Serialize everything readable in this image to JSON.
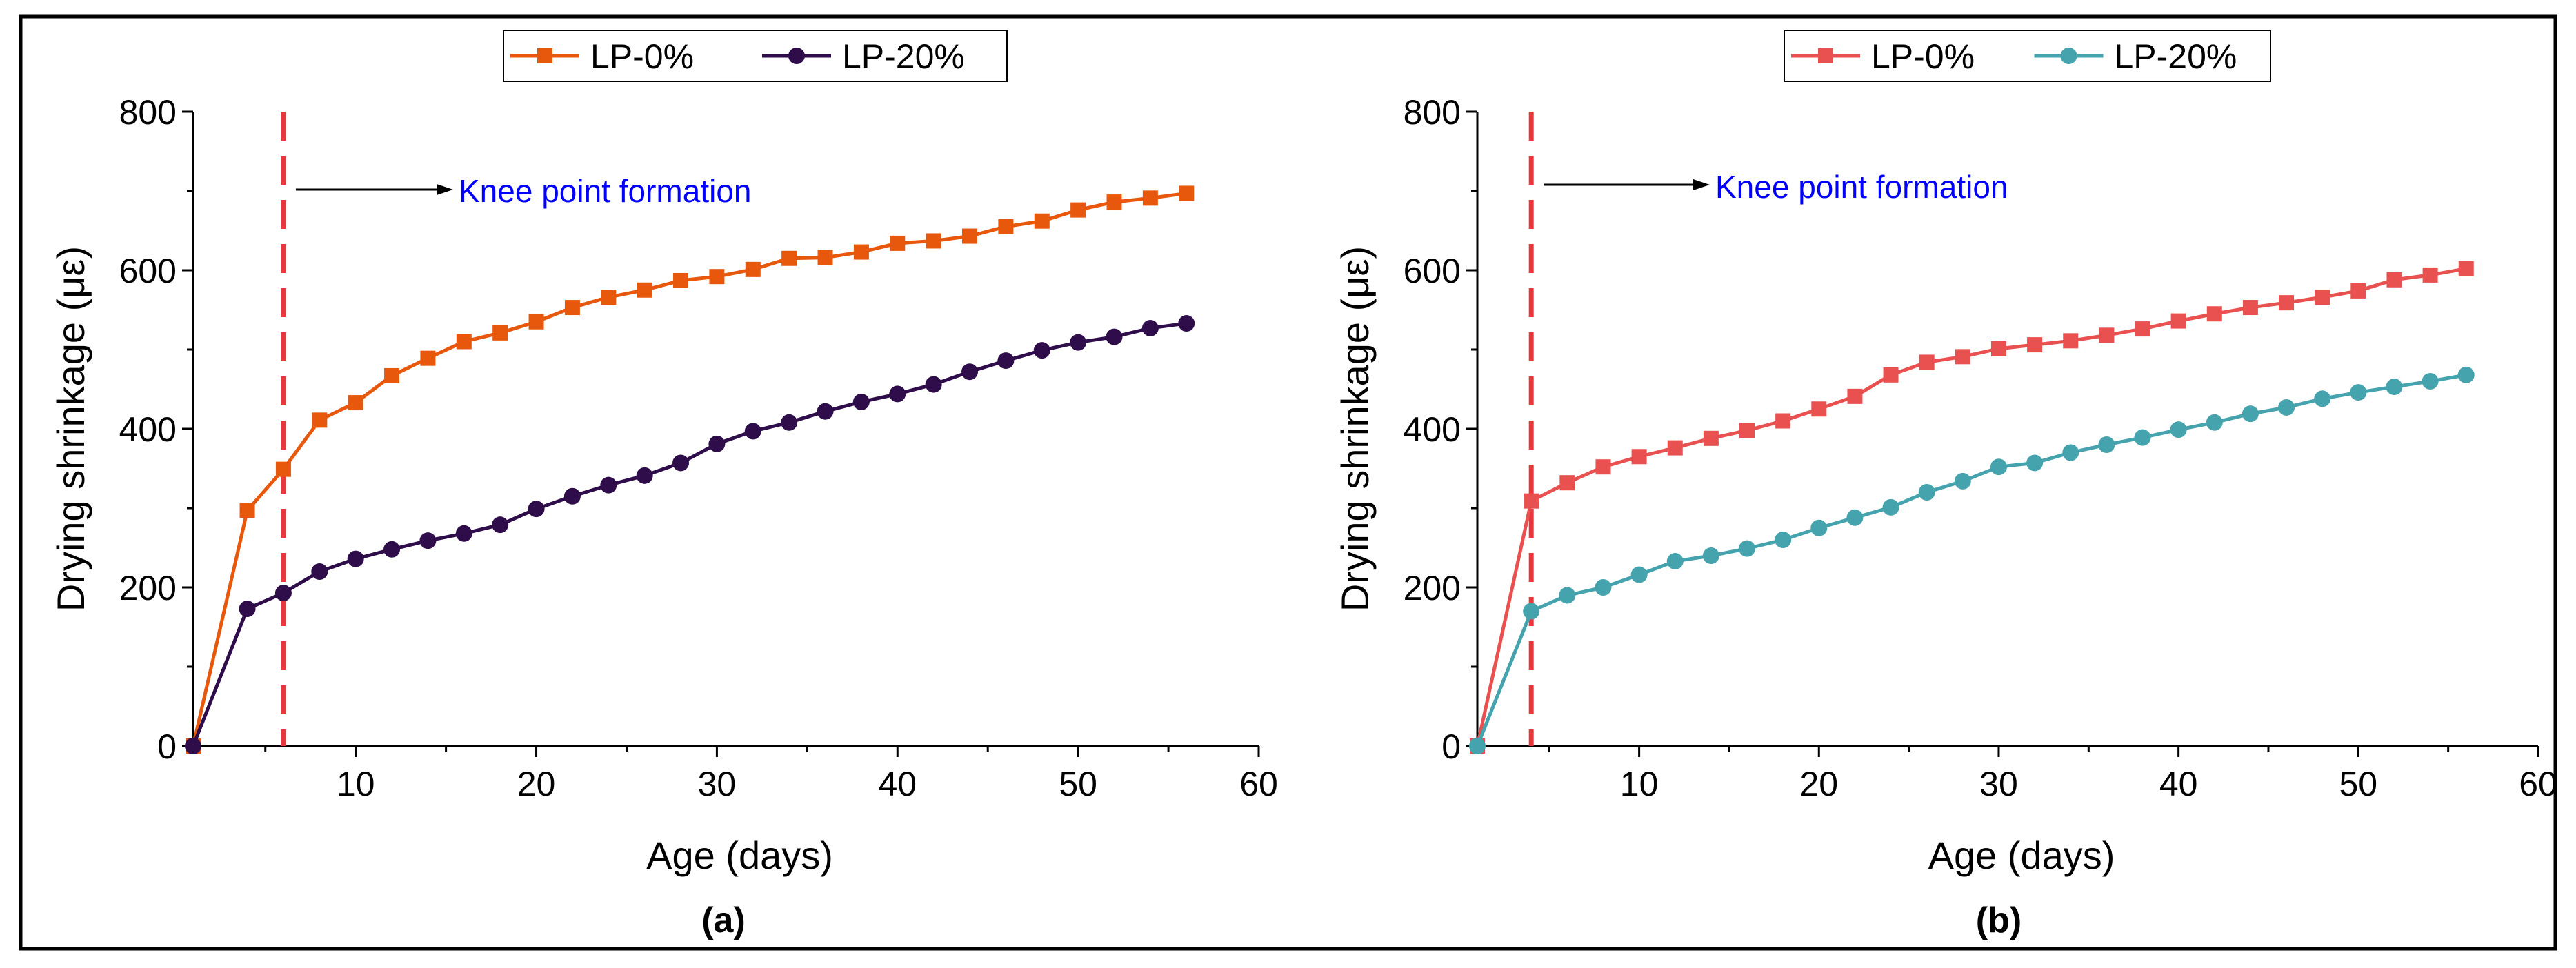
{
  "chart_data": [
    {
      "type": "line",
      "panel_label": "(a)",
      "xlabel": "Age (days)",
      "ylabel": "Drying shrinkage (με)",
      "xlim": [
        1,
        60
      ],
      "ylim": [
        0,
        800
      ],
      "xticks": [
        10,
        20,
        30,
        40,
        50,
        60
      ],
      "yticks": [
        0,
        200,
        400,
        600,
        800
      ],
      "grid": false,
      "legend_position": "top-center",
      "knee_x": 6,
      "knee_color": "#e8383d",
      "annotation": {
        "text": "Knee point formation",
        "color": "#0000ff"
      },
      "series": [
        {
          "name": "LP-0%",
          "color": "#e8580c",
          "marker": "square",
          "x": [
            1,
            4,
            6,
            8,
            10,
            12,
            14,
            16,
            18,
            20,
            22,
            24,
            26,
            28,
            30,
            32,
            34,
            36,
            38,
            40,
            42,
            44,
            46,
            48,
            50,
            52,
            54,
            56
          ],
          "y": [
            0,
            297,
            349,
            411,
            433,
            467,
            489,
            510,
            521,
            535,
            553,
            566,
            575,
            587,
            592,
            601,
            615,
            616,
            623,
            634,
            637,
            643,
            655,
            662,
            676,
            686,
            691,
            697
          ]
        },
        {
          "name": "LP-20%",
          "color": "#2e0d4a",
          "marker": "circle",
          "x": [
            1,
            4,
            6,
            8,
            10,
            12,
            14,
            16,
            18,
            20,
            22,
            24,
            26,
            28,
            30,
            32,
            34,
            36,
            38,
            40,
            42,
            44,
            46,
            48,
            50,
            52,
            54,
            56
          ],
          "y": [
            0,
            173,
            193,
            220,
            236,
            248,
            259,
            268,
            279,
            299,
            315,
            329,
            341,
            357,
            381,
            397,
            408,
            422,
            434,
            444,
            456,
            472,
            486,
            499,
            509,
            516,
            527,
            533
          ]
        }
      ]
    },
    {
      "type": "line",
      "panel_label": "(b)",
      "xlabel": "Age (days)",
      "ylabel": "Drying shrinkage (με)",
      "xlim": [
        1,
        60
      ],
      "ylim": [
        0,
        800
      ],
      "xticks": [
        10,
        20,
        30,
        40,
        50,
        60
      ],
      "yticks": [
        0,
        200,
        400,
        600,
        800
      ],
      "grid": false,
      "legend_position": "top-center",
      "knee_x": 4,
      "knee_color": "#e8383d",
      "annotation": {
        "text": "Knee point formation",
        "color": "#0000ff"
      },
      "series": [
        {
          "name": "LP-0%",
          "color": "#e8514f",
          "marker": "square",
          "x": [
            1,
            4,
            6,
            8,
            10,
            12,
            14,
            16,
            18,
            20,
            22,
            24,
            26,
            28,
            30,
            32,
            34,
            36,
            38,
            40,
            42,
            44,
            46,
            48,
            50,
            52,
            54,
            56
          ],
          "y": [
            0,
            309,
            332,
            352,
            365,
            376,
            388,
            398,
            410,
            425,
            441,
            468,
            484,
            491,
            501,
            506,
            511,
            518,
            526,
            536,
            545,
            553,
            559,
            566,
            574,
            588,
            594,
            602
          ]
        },
        {
          "name": "LP-20%",
          "color": "#45a3ad",
          "marker": "circle",
          "x": [
            1,
            4,
            6,
            8,
            10,
            12,
            14,
            16,
            18,
            20,
            22,
            24,
            26,
            28,
            30,
            32,
            34,
            36,
            38,
            40,
            42,
            44,
            46,
            48,
            50,
            52,
            54,
            56
          ],
          "y": [
            0,
            170,
            190,
            200,
            216,
            233,
            240,
            249,
            260,
            275,
            288,
            301,
            320,
            334,
            352,
            357,
            370,
            380,
            389,
            399,
            408,
            419,
            427,
            438,
            446,
            453,
            460,
            468
          ]
        }
      ]
    }
  ]
}
